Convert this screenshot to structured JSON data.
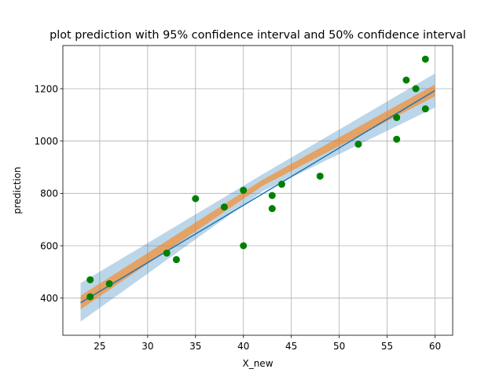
{
  "chart_data": {
    "type": "scatter",
    "title": "plot prediction with 95% confidence interval and 50% confidence interval",
    "xlabel": "X_new",
    "ylabel": "prediction",
    "xlim": [
      21.15,
      61.85
    ],
    "ylim": [
      258,
      1365
    ],
    "xticks": [
      25,
      30,
      35,
      40,
      45,
      50,
      55,
      60
    ],
    "yticks": [
      400,
      600,
      800,
      1000,
      1200
    ],
    "grid": true,
    "colors": {
      "points": "#008000",
      "line": "#1f77b4",
      "band_95": "#1f77b4",
      "band_50": "#ff7f0e",
      "grid": "#b0b0b0"
    },
    "points": {
      "x": [
        24,
        24,
        26,
        32,
        33,
        35,
        38,
        40,
        40,
        43,
        43,
        44,
        48,
        52,
        56,
        56,
        57,
        58,
        59,
        59
      ],
      "y": [
        470,
        405,
        455,
        572,
        547,
        780,
        748,
        812,
        600,
        792,
        742,
        835,
        866,
        988,
        1007,
        1090,
        1233,
        1200,
        1123,
        1313
      ]
    },
    "fit_line": {
      "x": [
        23,
        60
      ],
      "y": [
        382,
        1193
      ]
    },
    "ci_95": {
      "x": [
        23,
        42,
        60
      ],
      "lower": [
        310,
        808,
        1128
      ],
      "upper": [
        457,
        873,
        1258
      ]
    },
    "ci_50": {
      "x": [
        23,
        42,
        60
      ],
      "lower": [
        357,
        829,
        1171
      ],
      "upper": [
        409,
        852,
        1216
      ]
    }
  }
}
